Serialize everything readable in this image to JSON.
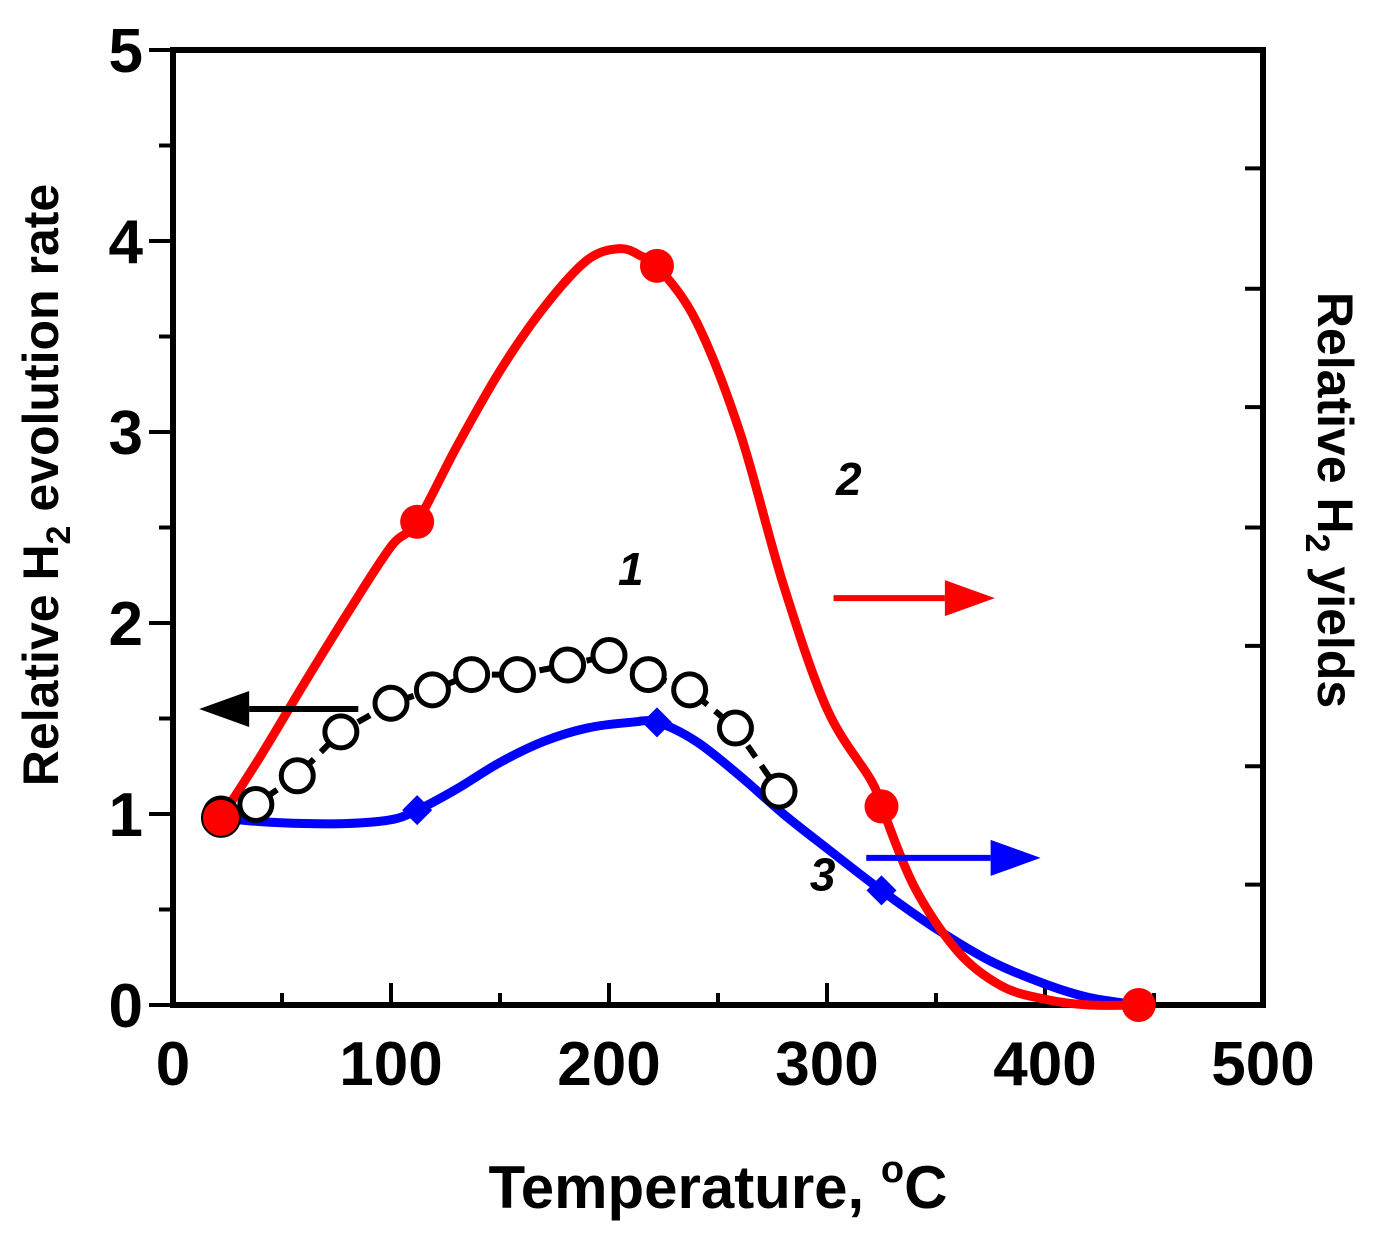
{
  "chart_data": {
    "type": "line",
    "xlabel": "Temperature, ",
    "xlabel_unit": "C",
    "xlabel_unit_superscript": "o",
    "ylabel_left": {
      "prefix": "Relative H",
      "subscript": "2",
      "suffix": " evolution rate"
    },
    "ylabel_right": {
      "prefix": "Relative H",
      "subscript": "2",
      "suffix": " yields"
    },
    "xlim": [
      0,
      500
    ],
    "ylim": [
      0,
      5
    ],
    "x_ticks": [
      "0",
      "100",
      "200",
      "300",
      "400",
      "500"
    ],
    "y_ticks": [
      "0",
      "1",
      "2",
      "3",
      "4",
      "5"
    ],
    "grid": false,
    "series": [
      {
        "name": "1",
        "axis": "left",
        "color": "#000000",
        "marker": "open-circle",
        "line": "dashed",
        "x": [
          22,
          38,
          57,
          77,
          100,
          119,
          137,
          158,
          181,
          200,
          218,
          237,
          258,
          278
        ],
        "y": [
          1.0,
          1.05,
          1.2,
          1.43,
          1.58,
          1.65,
          1.73,
          1.73,
          1.78,
          1.83,
          1.73,
          1.65,
          1.45,
          1.12
        ]
      },
      {
        "name": "2",
        "axis": "right",
        "color": "#ff0000",
        "marker": "filled-circle",
        "line": "smooth",
        "x": [
          22,
          112,
          222,
          325,
          443
        ],
        "y": [
          0.98,
          2.53,
          3.87,
          1.04,
          0.0
        ],
        "curve_x": [
          22,
          40,
          60,
          80,
          100,
          112,
          130,
          150,
          170,
          190,
          205,
          215,
          222,
          240,
          260,
          280,
          300,
          320,
          325,
          340,
          360,
          380,
          400,
          420,
          443
        ],
        "curve_y": [
          0.98,
          1.3,
          1.68,
          2.05,
          2.4,
          2.53,
          2.92,
          3.32,
          3.65,
          3.9,
          3.96,
          3.92,
          3.87,
          3.58,
          3.0,
          2.2,
          1.55,
          1.18,
          1.04,
          0.62,
          0.28,
          0.1,
          0.03,
          0.0,
          0.0
        ]
      },
      {
        "name": "3",
        "axis": "right",
        "color": "#0000ff",
        "marker": "filled-diamond",
        "line": "smooth",
        "x": [
          22,
          112,
          222,
          325,
          443
        ],
        "y": [
          0.98,
          1.02,
          1.48,
          0.6,
          0.0
        ],
        "curve_x": [
          22,
          40,
          60,
          80,
          100,
          112,
          130,
          150,
          170,
          190,
          210,
          222,
          240,
          260,
          280,
          300,
          325,
          350,
          375,
          400,
          420,
          443
        ],
        "curve_y": [
          0.98,
          0.96,
          0.95,
          0.95,
          0.97,
          1.02,
          1.13,
          1.27,
          1.38,
          1.45,
          1.48,
          1.48,
          1.38,
          1.2,
          1.0,
          0.82,
          0.6,
          0.4,
          0.23,
          0.11,
          0.04,
          0.0
        ]
      }
    ],
    "annotations": [
      {
        "text": "1",
        "x": 210,
        "y": 2.2,
        "color": "#000000"
      },
      {
        "text": "2",
        "x": 310,
        "y": 2.67,
        "color": "#000000"
      },
      {
        "text": "3",
        "x": 298,
        "y": 0.6,
        "color": "#000000"
      }
    ],
    "arrows": [
      {
        "series": "1",
        "direction": "left",
        "color": "#000000",
        "x_from": 85,
        "x_to": 12,
        "y": 1.55
      },
      {
        "series": "2",
        "direction": "right",
        "color": "#ff0000",
        "x_from": 303,
        "x_to": 377,
        "y": 2.13
      },
      {
        "series": "3",
        "direction": "right",
        "color": "#0000ff",
        "x_from": 318,
        "x_to": 398,
        "y": 0.77
      }
    ],
    "right_axis_ticks": [
      0.63,
      1.25,
      1.88,
      2.5,
      3.13,
      3.75,
      4.38
    ]
  }
}
